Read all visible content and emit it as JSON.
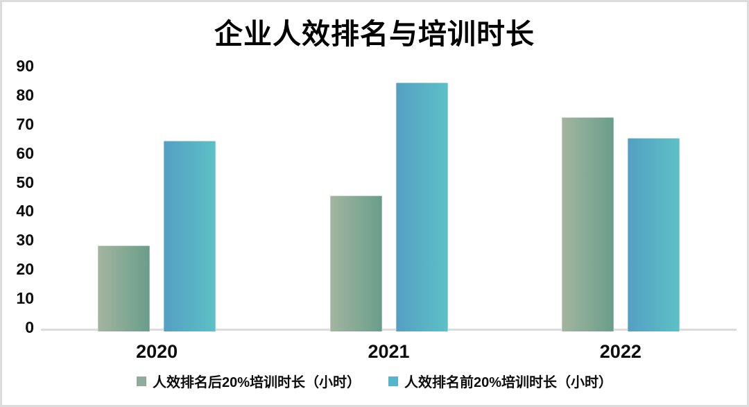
{
  "title": "企业人效排名与培训时长",
  "chart_data": {
    "type": "bar",
    "title": "企业人效排名与培训时长",
    "categories": [
      "2020",
      "2021",
      "2022"
    ],
    "series": [
      {
        "name": "人效排名后20%培训时长（小时）",
        "values": [
          29,
          46,
          73
        ],
        "gradient": [
          "#a3b5a0",
          "#699e8a"
        ],
        "legend_color": "#8fac9c"
      },
      {
        "name": "人效排名前20%培训时长（小时）",
        "values": [
          65,
          85,
          66
        ],
        "gradient": [
          "#549fc3",
          "#5dc0c6"
        ],
        "legend_color": "#56b5c9"
      }
    ],
    "xlabel": "",
    "ylabel": "",
    "ylim": [
      0,
      90
    ],
    "yticks": [
      0,
      10,
      20,
      30,
      40,
      50,
      60,
      70,
      80,
      90
    ],
    "grid": false,
    "legend_position": "bottom",
    "axis_line_color": "#dcdcdc",
    "text_color": "#0d0d0d"
  }
}
